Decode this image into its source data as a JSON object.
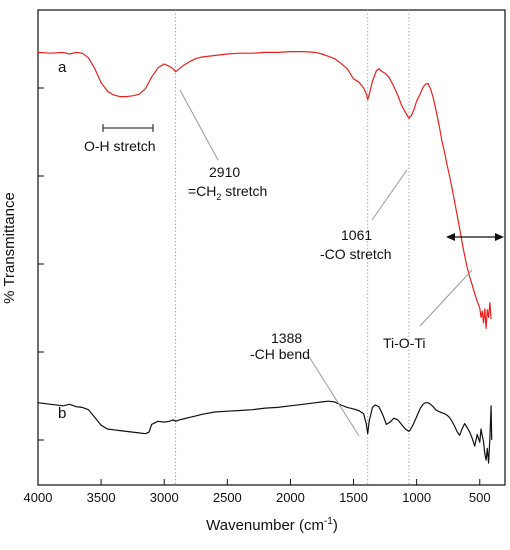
{
  "chart_data": {
    "type": "line",
    "xlabel_main": "Wavenumber (cm",
    "xlabel_sup": "-1",
    "xlabel_tail": ")",
    "ylabel": "% Transmittance",
    "xlim": [
      4000,
      300
    ],
    "x_reversed": true,
    "x_ticks": [
      4000,
      3500,
      3000,
      2500,
      2000,
      1500,
      1000,
      500
    ],
    "reference_lines": [
      2910,
      1388,
      1061
    ],
    "series": [
      {
        "name": "a",
        "color": "#e8211f",
        "points": [
          [
            4000,
            0.16
          ],
          [
            3900,
            0.17
          ],
          [
            3800,
            0.16
          ],
          [
            3750,
            0.18
          ],
          [
            3700,
            0.16
          ],
          [
            3650,
            0.17
          ],
          [
            3600,
            0.23
          ],
          [
            3550,
            0.37
          ],
          [
            3500,
            0.55
          ],
          [
            3450,
            0.66
          ],
          [
            3400,
            0.71
          ],
          [
            3350,
            0.73
          ],
          [
            3300,
            0.73
          ],
          [
            3250,
            0.72
          ],
          [
            3200,
            0.7
          ],
          [
            3150,
            0.63
          ],
          [
            3100,
            0.48
          ],
          [
            3050,
            0.36
          ],
          [
            3000,
            0.31
          ],
          [
            2960,
            0.34
          ],
          [
            2930,
            0.37
          ],
          [
            2910,
            0.41
          ],
          [
            2880,
            0.37
          ],
          [
            2850,
            0.33
          ],
          [
            2800,
            0.28
          ],
          [
            2750,
            0.24
          ],
          [
            2700,
            0.22
          ],
          [
            2600,
            0.2
          ],
          [
            2500,
            0.18
          ],
          [
            2400,
            0.17
          ],
          [
            2300,
            0.17
          ],
          [
            2200,
            0.16
          ],
          [
            2100,
            0.16
          ],
          [
            2000,
            0.15
          ],
          [
            1900,
            0.15
          ],
          [
            1800,
            0.16
          ],
          [
            1750,
            0.18
          ],
          [
            1700,
            0.21
          ],
          [
            1650,
            0.24
          ],
          [
            1600,
            0.3
          ],
          [
            1550,
            0.37
          ],
          [
            1500,
            0.5
          ],
          [
            1460,
            0.54
          ],
          [
            1420,
            0.62
          ],
          [
            1400,
            0.69
          ],
          [
            1388,
            0.77
          ],
          [
            1375,
            0.7
          ],
          [
            1350,
            0.53
          ],
          [
            1320,
            0.4
          ],
          [
            1300,
            0.37
          ],
          [
            1280,
            0.4
          ],
          [
            1250,
            0.43
          ],
          [
            1220,
            0.48
          ],
          [
            1180,
            0.6
          ],
          [
            1150,
            0.71
          ],
          [
            1120,
            0.84
          ],
          [
            1100,
            0.9
          ],
          [
            1080,
            0.96
          ],
          [
            1061,
            1.01
          ],
          [
            1040,
            0.97
          ],
          [
            1020,
            0.89
          ],
          [
            1000,
            0.79
          ],
          [
            970,
            0.69
          ],
          [
            950,
            0.61
          ],
          [
            930,
            0.57
          ],
          [
            910,
            0.56
          ],
          [
            890,
            0.63
          ],
          [
            870,
            0.74
          ],
          [
            850,
            0.88
          ],
          [
            820,
            1.12
          ],
          [
            800,
            1.3
          ],
          [
            780,
            1.44
          ],
          [
            760,
            1.6
          ],
          [
            740,
            1.75
          ],
          [
            720,
            1.91
          ],
          [
            700,
            2.08
          ],
          [
            680,
            2.25
          ],
          [
            660,
            2.43
          ],
          [
            640,
            2.61
          ],
          [
            620,
            2.78
          ],
          [
            600,
            2.93
          ],
          [
            580,
            3.06
          ],
          [
            560,
            3.16
          ],
          [
            540,
            3.27
          ],
          [
            520,
            3.37
          ],
          [
            500,
            3.46
          ],
          [
            490,
            3.58
          ],
          [
            480,
            3.5
          ],
          [
            470,
            3.65
          ],
          [
            460,
            3.47
          ],
          [
            450,
            3.72
          ],
          [
            440,
            3.48
          ],
          [
            430,
            3.58
          ],
          [
            420,
            3.39
          ],
          [
            410,
            3.6
          ]
        ]
      },
      {
        "name": "b",
        "color": "#111111",
        "points": [
          [
            4000,
            4.68
          ],
          [
            3900,
            4.7
          ],
          [
            3800,
            4.72
          ],
          [
            3750,
            4.7
          ],
          [
            3700,
            4.73
          ],
          [
            3650,
            4.74
          ],
          [
            3600,
            4.77
          ],
          [
            3550,
            4.87
          ],
          [
            3500,
            4.97
          ],
          [
            3450,
            5.02
          ],
          [
            3400,
            5.03
          ],
          [
            3350,
            5.04
          ],
          [
            3300,
            5.05
          ],
          [
            3250,
            5.06
          ],
          [
            3200,
            5.07
          ],
          [
            3150,
            5.08
          ],
          [
            3120,
            5.06
          ],
          [
            3100,
            4.96
          ],
          [
            3050,
            4.92
          ],
          [
            3000,
            4.93
          ],
          [
            2960,
            4.92
          ],
          [
            2930,
            4.9
          ],
          [
            2910,
            4.92
          ],
          [
            2880,
            4.9
          ],
          [
            2850,
            4.89
          ],
          [
            2800,
            4.87
          ],
          [
            2750,
            4.85
          ],
          [
            2700,
            4.83
          ],
          [
            2600,
            4.8
          ],
          [
            2500,
            4.79
          ],
          [
            2400,
            4.78
          ],
          [
            2300,
            4.77
          ],
          [
            2200,
            4.75
          ],
          [
            2100,
            4.74
          ],
          [
            2000,
            4.72
          ],
          [
            1900,
            4.7
          ],
          [
            1800,
            4.68
          ],
          [
            1750,
            4.67
          ],
          [
            1700,
            4.66
          ],
          [
            1650,
            4.67
          ],
          [
            1600,
            4.71
          ],
          [
            1550,
            4.74
          ],
          [
            1500,
            4.76
          ],
          [
            1460,
            4.78
          ],
          [
            1420,
            4.82
          ],
          [
            1400,
            4.95
          ],
          [
            1388,
            5.08
          ],
          [
            1375,
            4.91
          ],
          [
            1350,
            4.74
          ],
          [
            1330,
            4.71
          ],
          [
            1300,
            4.73
          ],
          [
            1270,
            4.83
          ],
          [
            1240,
            4.96
          ],
          [
            1210,
            4.93
          ],
          [
            1180,
            4.88
          ],
          [
            1150,
            4.9
          ],
          [
            1120,
            4.96
          ],
          [
            1090,
            5.02
          ],
          [
            1070,
            5.04
          ],
          [
            1061,
            5.05
          ],
          [
            1050,
            5.03
          ],
          [
            1030,
            4.97
          ],
          [
            1000,
            4.86
          ],
          [
            970,
            4.75
          ],
          [
            950,
            4.7
          ],
          [
            930,
            4.68
          ],
          [
            910,
            4.68
          ],
          [
            890,
            4.7
          ],
          [
            870,
            4.73
          ],
          [
            850,
            4.77
          ],
          [
            830,
            4.79
          ],
          [
            800,
            4.81
          ],
          [
            780,
            4.82
          ],
          [
            760,
            4.84
          ],
          [
            740,
            4.87
          ],
          [
            720,
            4.92
          ],
          [
            700,
            4.98
          ],
          [
            680,
            5.05
          ],
          [
            660,
            5.1
          ],
          [
            640,
            5.02
          ],
          [
            620,
            4.95
          ],
          [
            600,
            5.0
          ],
          [
            580,
            5.06
          ],
          [
            560,
            5.14
          ],
          [
            540,
            5.24
          ],
          [
            520,
            5.09
          ],
          [
            500,
            5.19
          ],
          [
            490,
            5.02
          ],
          [
            480,
            5.11
          ],
          [
            470,
            5.18
          ],
          [
            460,
            5.34
          ],
          [
            450,
            5.42
          ],
          [
            440,
            5.27
          ],
          [
            430,
            5.46
          ],
          [
            420,
            5.13
          ],
          [
            410,
            4.72
          ],
          [
            405,
            5.16
          ]
        ]
      }
    ],
    "annotations": [
      {
        "id": "oh",
        "text": "O-H stretch",
        "range": [
          3500,
          3100
        ]
      },
      {
        "id": "ch2",
        "line1": "2910",
        "line2_main": "=CH",
        "line2_sub": "2",
        "line2_tail": " stretch",
        "target": 2910
      },
      {
        "id": "co",
        "line1": "1061",
        "line2": "-CO stretch",
        "target": 1061
      },
      {
        "id": "titi",
        "text": "Ti-O-Ti",
        "span": [
          700,
          300
        ]
      },
      {
        "id": "ch",
        "line1": "1388",
        "line2": "-CH bend",
        "target": 1388
      }
    ]
  }
}
